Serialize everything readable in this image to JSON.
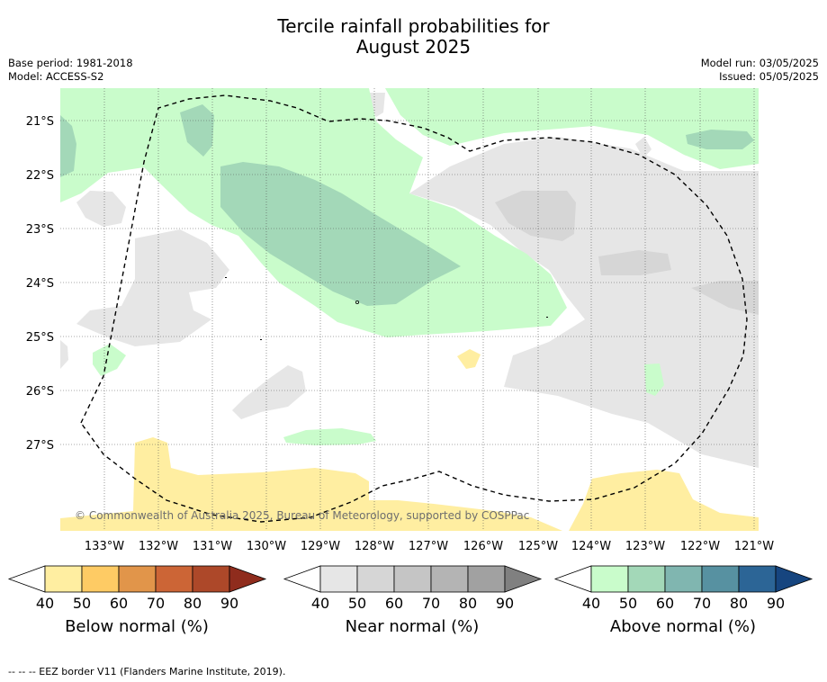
{
  "title_line1": "Tercile rainfall probabilities for",
  "title_line2": "August 2025",
  "base_period": "Base period: 1981-2018",
  "model": "Model: ACCESS-S2",
  "model_run": "Model run: 03/05/2025",
  "issued": "Issued: 05/05/2025",
  "copyright": "© Commonwealth of Australia 2025, Bureau of Meteorology, supported by COSPPac",
  "lat_labels": [
    "21°S",
    "22°S",
    "23°S",
    "24°S",
    "25°S",
    "26°S",
    "27°S"
  ],
  "lon_labels": [
    "133°W",
    "132°W",
    "131°W",
    "130°W",
    "129°W",
    "128°W",
    "127°W",
    "126°W",
    "125°W",
    "124°W",
    "123°W",
    "122°W",
    "121°W"
  ],
  "colorbars": [
    {
      "label": "Below normal (%)",
      "ticks": [
        "40",
        "50",
        "60",
        "70",
        "80",
        "90"
      ],
      "colors": [
        "#ffeea1",
        "#fecb64",
        "#e1954a",
        "#cc6536",
        "#ad4829",
        "#8f2c1d"
      ]
    },
    {
      "label": "Near normal (%)",
      "ticks": [
        "40",
        "50",
        "60",
        "70",
        "80",
        "90"
      ],
      "colors": [
        "#e6e6e6",
        "#d6d6d6",
        "#c5c5c5",
        "#b4b4b4",
        "#a1a1a1",
        "#808080"
      ]
    },
    {
      "label": "Above normal (%)",
      "ticks": [
        "40",
        "50",
        "60",
        "70",
        "80",
        "90"
      ],
      "colors": [
        "#c9fccb",
        "#a3d8b8",
        "#80b6b0",
        "#5791a1",
        "#2c6596",
        "#16457f"
      ]
    }
  ],
  "legend_note": "--  --  -- EEZ border V11 (Flanders Marine Institute, 2019)."
}
